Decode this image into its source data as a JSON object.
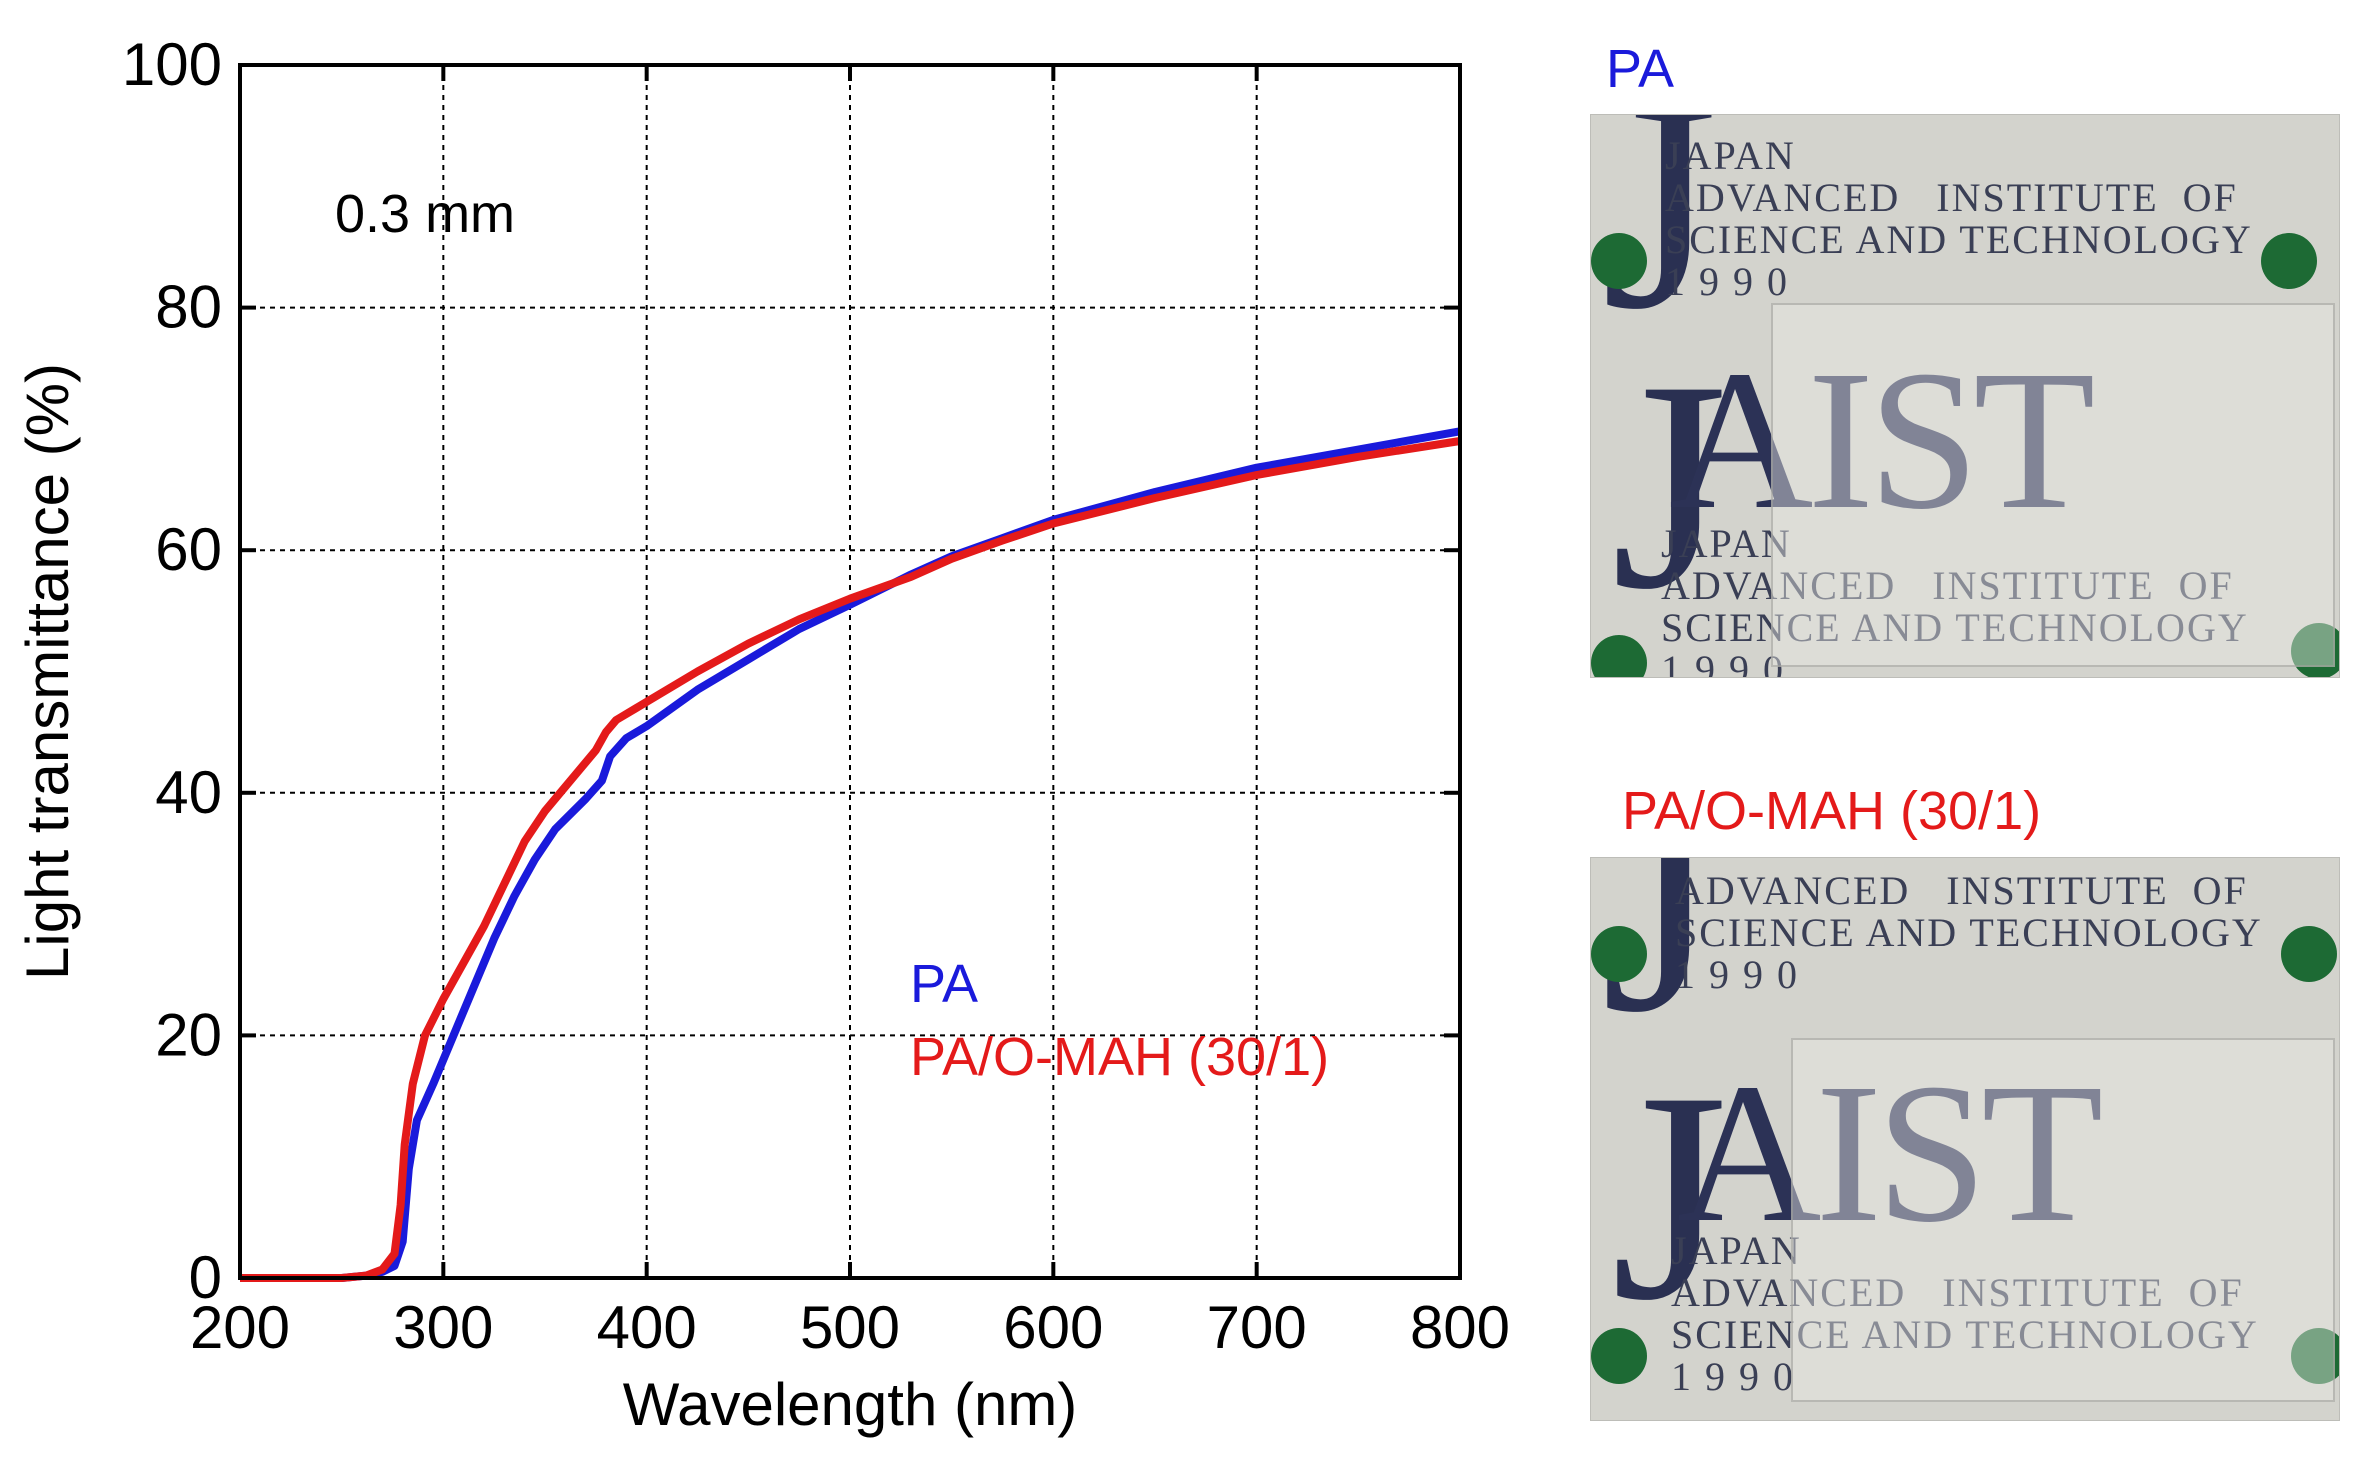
{
  "chart_data": {
    "type": "line",
    "xlabel": "Wavelength (nm)",
    "ylabel": "Light transmittance (%)",
    "xlim": [
      200,
      800
    ],
    "ylim": [
      0,
      100
    ],
    "xticks": [
      200,
      300,
      400,
      500,
      600,
      700,
      800
    ],
    "yticks": [
      0,
      20,
      40,
      60,
      80,
      100
    ],
    "grid": true,
    "annotation": "0.3 mm",
    "legend_position": "lower-right",
    "series": [
      {
        "name": "PA",
        "color": "#1a1adb",
        "points": [
          [
            200,
            0
          ],
          [
            250,
            0
          ],
          [
            262,
            0.2
          ],
          [
            270,
            0.5
          ],
          [
            276,
            1
          ],
          [
            280,
            3
          ],
          [
            283,
            9
          ],
          [
            287,
            13
          ],
          [
            295,
            16
          ],
          [
            305,
            20
          ],
          [
            315,
            24
          ],
          [
            325,
            28
          ],
          [
            335,
            31.5
          ],
          [
            345,
            34.5
          ],
          [
            355,
            37
          ],
          [
            370,
            39.5
          ],
          [
            378,
            41
          ],
          [
            382,
            43
          ],
          [
            390,
            44.5
          ],
          [
            400,
            45.5
          ],
          [
            425,
            48.5
          ],
          [
            450,
            51
          ],
          [
            475,
            53.5
          ],
          [
            500,
            55.5
          ],
          [
            530,
            58
          ],
          [
            550,
            59.5
          ],
          [
            575,
            61
          ],
          [
            600,
            62.5
          ],
          [
            650,
            64.8
          ],
          [
            700,
            66.8
          ],
          [
            750,
            68.3
          ],
          [
            800,
            69.8
          ]
        ]
      },
      {
        "name": "PA/O-MAH (30/1)",
        "color": "#e41a1a",
        "points": [
          [
            200,
            0
          ],
          [
            250,
            0
          ],
          [
            262,
            0.2
          ],
          [
            270,
            0.7
          ],
          [
            276,
            2
          ],
          [
            279,
            6
          ],
          [
            281,
            11
          ],
          [
            285,
            16
          ],
          [
            291,
            20
          ],
          [
            300,
            23
          ],
          [
            310,
            26
          ],
          [
            320,
            29
          ],
          [
            330,
            32.5
          ],
          [
            340,
            36
          ],
          [
            350,
            38.5
          ],
          [
            365,
            41.5
          ],
          [
            375,
            43.5
          ],
          [
            380,
            45
          ],
          [
            385,
            46
          ],
          [
            400,
            47.5
          ],
          [
            425,
            50
          ],
          [
            450,
            52.3
          ],
          [
            475,
            54.3
          ],
          [
            500,
            56
          ],
          [
            530,
            57.8
          ],
          [
            550,
            59.3
          ],
          [
            575,
            60.8
          ],
          [
            600,
            62.2
          ],
          [
            650,
            64.3
          ],
          [
            700,
            66.2
          ],
          [
            750,
            67.7
          ],
          [
            800,
            69
          ]
        ]
      }
    ]
  },
  "photos": [
    {
      "label": "PA",
      "label_color": "#1a1adb",
      "small_text": "JAPAN\nADVANCED   INSTITUTE  OF\nSCIENCE AND TECHNOLOGY\n1 9 9 0",
      "logo_text": "AIST",
      "lower_text": "JAPAN\nADVANCED   INSTITUTE  OF\nSCIENCE AND TECHNOLOGY\n1 9 9 0"
    },
    {
      "label": "PA/O-MAH (30/1)",
      "label_color": "#e41a1a",
      "small_text": "ADVANCED   INSTITUTE  OF\nSCIENCE AND TECHNOLOGY\n1 9 9 0",
      "logo_text": "AIST",
      "lower_text": "JAPAN\nADVANCED   INSTITUTE  OF\nSCIENCE AND TECHNOLOGY\n1 9 9 0"
    }
  ]
}
